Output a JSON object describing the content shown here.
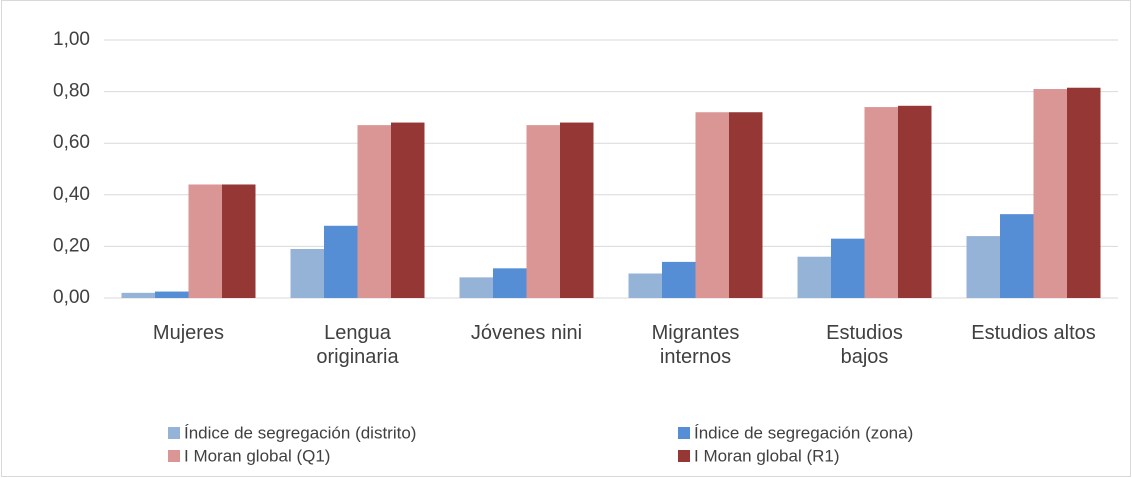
{
  "chart_data": {
    "type": "bar",
    "categories": [
      "Mujeres",
      "Lengua\noriginaria",
      "Jóvenes nini",
      "Migrantes\ninternos",
      "Estudios\nbajos",
      "Estudios altos"
    ],
    "series": [
      {
        "name": "Índice de segregación (distrito)",
        "color": "#95b3d7",
        "values": [
          0.02,
          0.19,
          0.08,
          0.095,
          0.16,
          0.24
        ]
      },
      {
        "name": "Índice de segregación (zona)",
        "color": "#558ed5",
        "values": [
          0.025,
          0.28,
          0.115,
          0.14,
          0.23,
          0.325
        ]
      },
      {
        "name": "I Moran global (Q1)",
        "color": "#d99694",
        "values": [
          0.44,
          0.67,
          0.67,
          0.72,
          0.74,
          0.81
        ]
      },
      {
        "name": "I Moran global (R1)",
        "color": "#953735",
        "values": [
          0.44,
          0.68,
          0.68,
          0.72,
          0.745,
          0.815
        ]
      }
    ],
    "ylim": [
      0,
      1
    ],
    "yticks": [
      {
        "value": 0,
        "label": "0,00"
      },
      {
        "value": 0.2,
        "label": "0,20"
      },
      {
        "value": 0.4,
        "label": "0,40"
      },
      {
        "value": 0.6,
        "label": "0,60"
      },
      {
        "value": 0.8,
        "label": "0,80"
      },
      {
        "value": 1,
        "label": "1,00"
      }
    ],
    "grid": true,
    "legend": "bottom"
  }
}
